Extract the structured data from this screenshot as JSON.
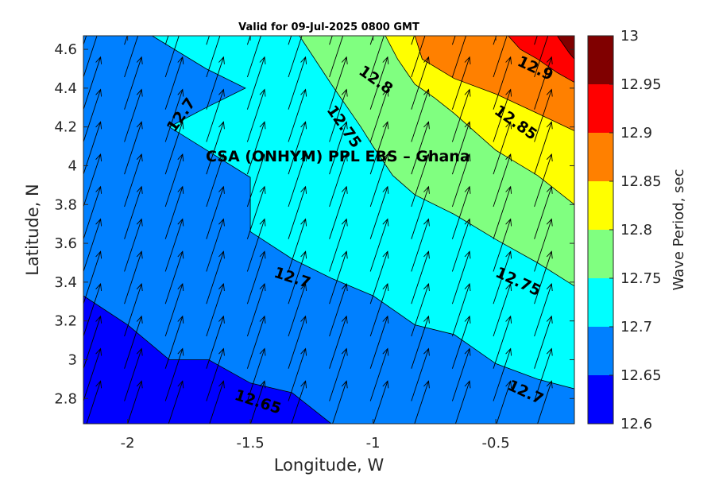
{
  "chart_data": {
    "type": "heatmap",
    "title": "Valid for 09-Jul-2025 0800 GMT",
    "xlabel": "Longitude, W",
    "ylabel": "Latitude, N",
    "xlim": [
      -2.18,
      -0.18
    ],
    "ylim": [
      2.67,
      4.67
    ],
    "x_ticks": [
      -2,
      -1.5,
      -1,
      -0.5
    ],
    "x_tick_labels": [
      "-2",
      "-1.5",
      "-1",
      "-0.5"
    ],
    "y_ticks": [
      2.8,
      3.0,
      3.2,
      3.4,
      3.6,
      3.8,
      4.0,
      4.2,
      4.4,
      4.6
    ],
    "y_tick_labels": [
      "2.8",
      "3",
      "3.2",
      "3.4",
      "3.6",
      "3.8",
      "4",
      "4.2",
      "4.4",
      "4.6"
    ],
    "annotation": "CSA (ONHYM) PPL EBS  – Ghana",
    "colorbar": {
      "label": "Wave Period, sec",
      "levels": [
        12.6,
        12.65,
        12.7,
        12.75,
        12.8,
        12.85,
        12.9,
        12.95,
        13.0
      ],
      "tick_labels": [
        "12.6",
        "12.65",
        "12.7",
        "12.75",
        "12.8",
        "12.85",
        "12.9",
        "12.95",
        "13"
      ],
      "colors": [
        "#0000ff",
        "#0080ff",
        "#00ffff",
        "#80ff80",
        "#ffff00",
        "#ff8000",
        "#ff0000",
        "#800000"
      ]
    },
    "contour_bands": [
      {
        "color": "#0080ff",
        "polygon": [
          [
            -2.18,
            4.67
          ],
          [
            -2.18,
            2.67
          ],
          [
            -0.18,
            2.67
          ],
          [
            -0.18,
            4.67
          ]
        ]
      },
      {
        "color": "#00ffff",
        "polygon": [
          [
            -1.9,
            4.67
          ],
          [
            -1.68,
            4.5
          ],
          [
            -1.52,
            4.4
          ],
          [
            -1.68,
            4.3
          ],
          [
            -1.83,
            4.2
          ],
          [
            -1.5,
            3.94
          ],
          [
            -1.5,
            3.66
          ],
          [
            -1.33,
            3.52
          ],
          [
            -1.17,
            3.42
          ],
          [
            -1.0,
            3.33
          ],
          [
            -0.83,
            3.18
          ],
          [
            -0.67,
            3.13
          ],
          [
            -0.5,
            2.98
          ],
          [
            -0.33,
            2.9
          ],
          [
            -0.18,
            2.85
          ],
          [
            -0.18,
            4.67
          ]
        ]
      },
      {
        "color": "#0000ff",
        "polygon": [
          [
            -2.18,
            3.33
          ],
          [
            -2.0,
            3.18
          ],
          [
            -1.83,
            3.0
          ],
          [
            -1.67,
            3.0
          ],
          [
            -1.5,
            2.88
          ],
          [
            -1.33,
            2.83
          ],
          [
            -1.17,
            2.67
          ],
          [
            -2.18,
            2.67
          ]
        ]
      },
      {
        "color": "#80ff80",
        "polygon": [
          [
            -1.3,
            4.67
          ],
          [
            -1.17,
            4.42
          ],
          [
            -1.05,
            4.2
          ],
          [
            -1.0,
            4.1
          ],
          [
            -0.92,
            3.95
          ],
          [
            -0.83,
            3.85
          ],
          [
            -0.67,
            3.75
          ],
          [
            -0.5,
            3.62
          ],
          [
            -0.33,
            3.5
          ],
          [
            -0.18,
            3.38
          ],
          [
            -0.18,
            4.67
          ]
        ]
      },
      {
        "color": "#ffff00",
        "polygon": [
          [
            -0.95,
            4.67
          ],
          [
            -0.9,
            4.55
          ],
          [
            -0.83,
            4.42
          ],
          [
            -0.75,
            4.35
          ],
          [
            -0.67,
            4.27
          ],
          [
            -0.5,
            4.08
          ],
          [
            -0.33,
            3.95
          ],
          [
            -0.18,
            3.8
          ],
          [
            -0.18,
            4.67
          ]
        ]
      },
      {
        "color": "#ff8000",
        "polygon": [
          [
            -0.83,
            4.67
          ],
          [
            -0.8,
            4.55
          ],
          [
            -0.67,
            4.45
          ],
          [
            -0.5,
            4.37
          ],
          [
            -0.33,
            4.27
          ],
          [
            -0.18,
            4.18
          ],
          [
            -0.18,
            4.67
          ]
        ]
      },
      {
        "color": "#ff0000",
        "polygon": [
          [
            -0.45,
            4.67
          ],
          [
            -0.4,
            4.6
          ],
          [
            -0.33,
            4.55
          ],
          [
            -0.25,
            4.48
          ],
          [
            -0.18,
            4.43
          ],
          [
            -0.18,
            4.67
          ]
        ]
      },
      {
        "color": "#800000",
        "polygon": [
          [
            -0.25,
            4.67
          ],
          [
            -0.2,
            4.58
          ],
          [
            -0.18,
            4.55
          ],
          [
            -0.18,
            4.67
          ]
        ]
      }
    ],
    "contour_labels": [
      {
        "text": "12.7",
        "x": -1.78,
        "y": 4.26,
        "angle": -55
      },
      {
        "text": "12.75",
        "x": -1.12,
        "y": 4.2,
        "angle": 55
      },
      {
        "text": "12.8",
        "x": -0.99,
        "y": 4.44,
        "angle": 35
      },
      {
        "text": "12.9",
        "x": -0.34,
        "y": 4.5,
        "angle": 25
      },
      {
        "text": "12.85",
        "x": -0.42,
        "y": 4.22,
        "angle": 35
      },
      {
        "text": "12.7",
        "x": -1.33,
        "y": 3.42,
        "angle": 18
      },
      {
        "text": "12.75",
        "x": -0.41,
        "y": 3.4,
        "angle": 25
      },
      {
        "text": "12.7",
        "x": -0.38,
        "y": 2.83,
        "angle": 25
      },
      {
        "text": "12.65",
        "x": -1.47,
        "y": 2.78,
        "angle": 18
      }
    ],
    "wave_direction": {
      "dx": 0.07,
      "dy": 0.27,
      "x_spacing": 0.167,
      "y_spacing": 0.167
    }
  }
}
